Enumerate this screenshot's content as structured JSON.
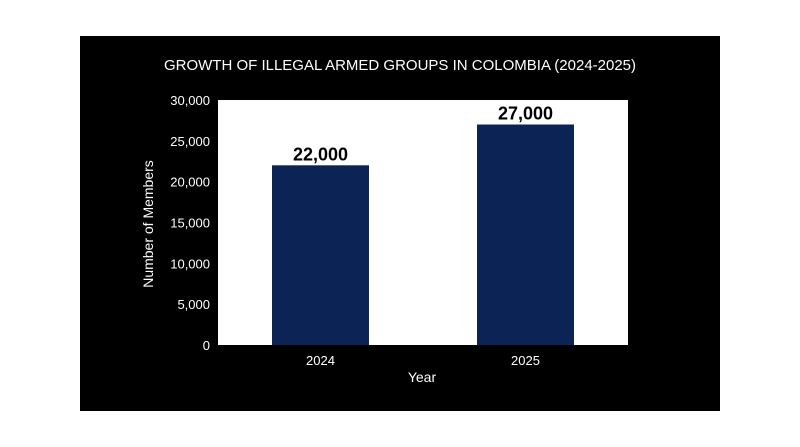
{
  "colors": {
    "background": "#000000",
    "plot_area": "#ffffff",
    "bar": "#0c2356",
    "text": "#ffffff",
    "data_label": "#000000"
  },
  "chart_data": {
    "type": "bar",
    "title": "GROWTH OF ILLEGAL ARMED GROUPS IN COLOMBIA (2024-2025)",
    "xlabel": "Year",
    "ylabel": "Number of Members",
    "categories": [
      "2024",
      "2025"
    ],
    "values": [
      22000,
      27000
    ],
    "data_labels": [
      "22,000",
      "27,000"
    ],
    "ylim": [
      0,
      30000
    ],
    "yticks": [
      0,
      5000,
      10000,
      15000,
      20000,
      25000,
      30000
    ],
    "ytick_labels": [
      "0",
      "5,000",
      "10,000",
      "15,000",
      "20,000",
      "25,000",
      "30,000"
    ],
    "grid": false,
    "legend": "none"
  }
}
